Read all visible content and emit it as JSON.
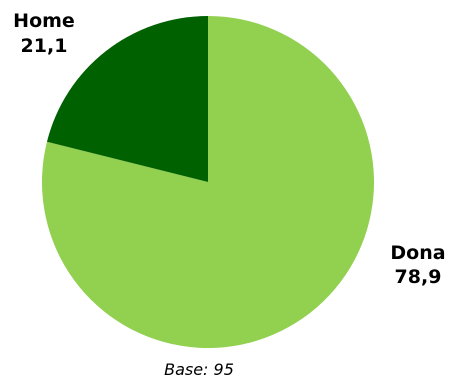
{
  "chart_data": {
    "type": "pie",
    "slices": [
      {
        "label": "Dona",
        "value_text": "78,9",
        "value": 78.9,
        "color": "#92d050"
      },
      {
        "label": "Home",
        "value_text": "21,1",
        "value": 21.1,
        "color": "#006100"
      }
    ],
    "start_angle_deg": 0,
    "direction": "clockwise",
    "note": "Base: 95"
  }
}
